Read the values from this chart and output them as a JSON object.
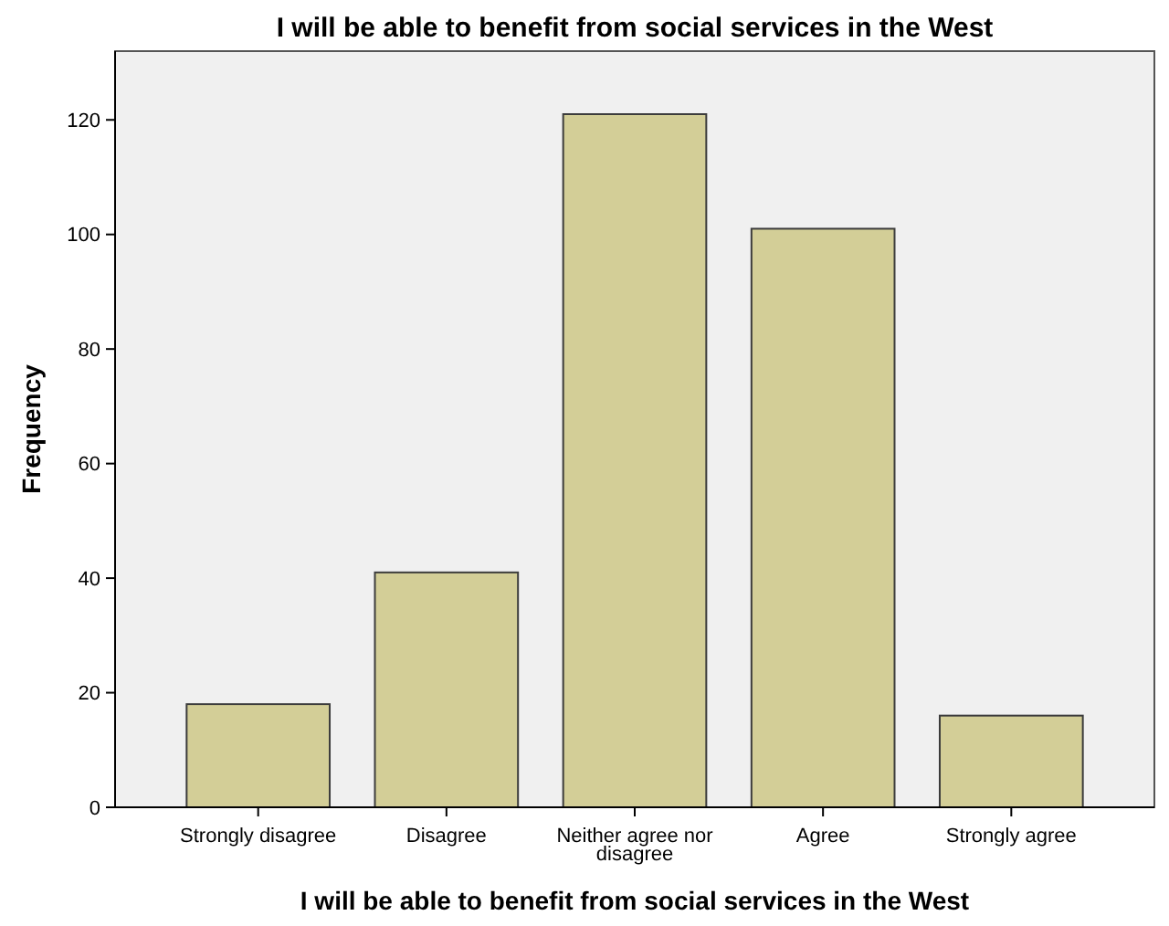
{
  "chart_data": {
    "type": "bar",
    "title": "I will be able to benefit from social services in the West",
    "xlabel": "I will be able to benefit from social services in the West",
    "ylabel": "Frequency",
    "categories": [
      "Strongly disagree",
      "Disagree",
      "Neither agree nor disagree",
      "Agree",
      "Strongly agree"
    ],
    "values": [
      18,
      41,
      121,
      101,
      16
    ],
    "color": "#d3ce97",
    "ylim": [
      0,
      132
    ],
    "yticks": [
      0,
      20,
      40,
      60,
      80,
      100,
      120
    ],
    "grid": false
  }
}
